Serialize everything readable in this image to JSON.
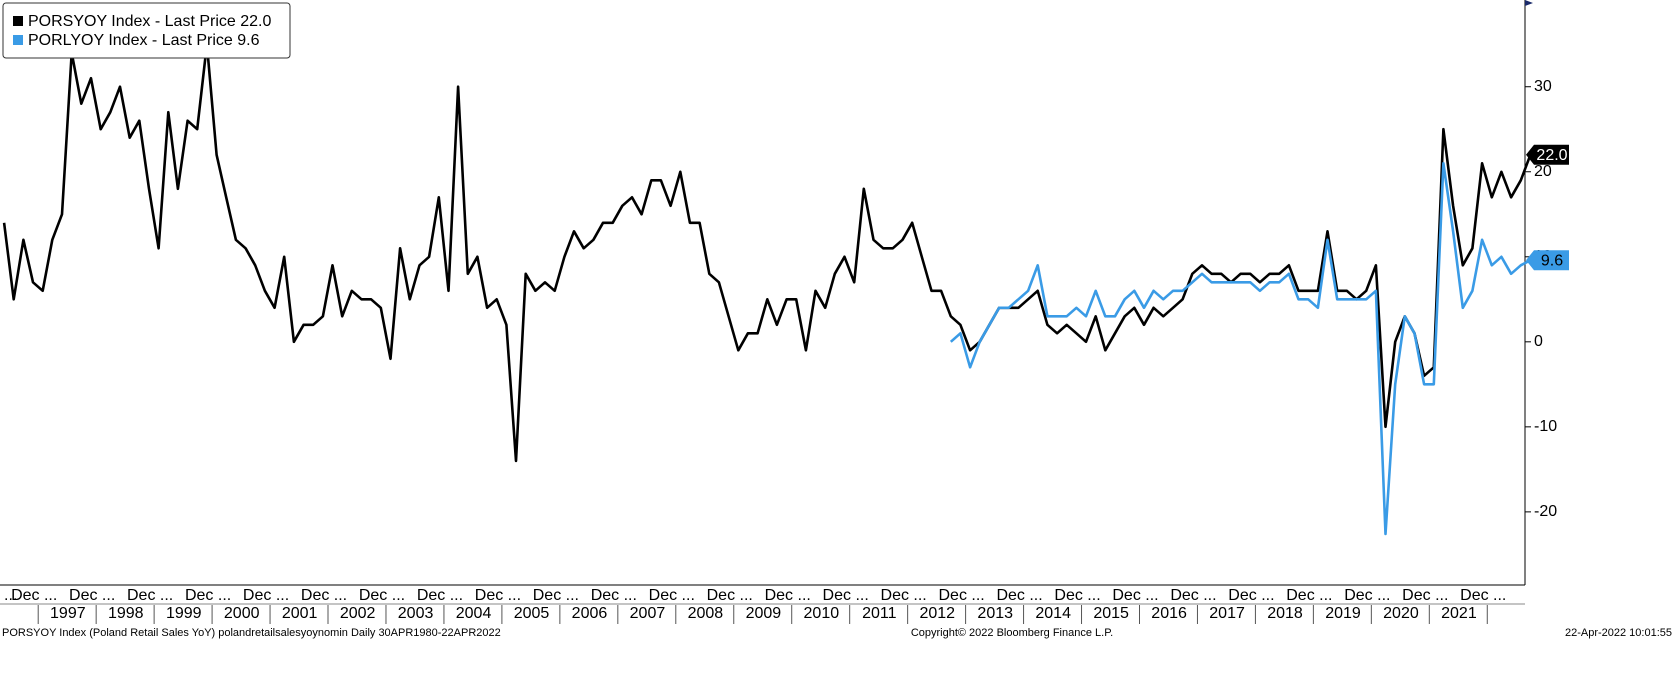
{
  "chart_data": {
    "type": "line",
    "x": [
      1996.4,
      1996.567,
      1996.733,
      1996.9,
      1997.067,
      1997.233,
      1997.4,
      1997.567,
      1997.733,
      1997.9,
      1998.067,
      1998.233,
      1998.4,
      1998.567,
      1998.733,
      1998.9,
      1999.067,
      1999.233,
      1999.4,
      1999.567,
      1999.733,
      1999.9,
      2000.067,
      2000.233,
      2000.4,
      2000.567,
      2000.733,
      2000.9,
      2001.067,
      2001.233,
      2001.4,
      2001.567,
      2001.733,
      2001.9,
      2002.067,
      2002.233,
      2002.4,
      2002.567,
      2002.733,
      2002.9,
      2003.067,
      2003.233,
      2003.4,
      2003.567,
      2003.733,
      2003.9,
      2004.067,
      2004.233,
      2004.4,
      2004.567,
      2004.733,
      2004.9,
      2005.067,
      2005.233,
      2005.4,
      2005.567,
      2005.733,
      2005.9,
      2006.067,
      2006.233,
      2006.4,
      2006.567,
      2006.733,
      2006.9,
      2007.067,
      2007.233,
      2007.4,
      2007.567,
      2007.733,
      2007.9,
      2008.067,
      2008.233,
      2008.4,
      2008.567,
      2008.733,
      2008.9,
      2009.067,
      2009.233,
      2009.4,
      2009.567,
      2009.733,
      2009.9,
      2010.067,
      2010.233,
      2010.4,
      2010.567,
      2010.733,
      2010.9,
      2011.067,
      2011.233,
      2011.4,
      2011.567,
      2011.733,
      2011.9,
      2012.067,
      2012.233,
      2012.4,
      2012.567,
      2012.733,
      2012.9,
      2013.067,
      2013.233,
      2013.4,
      2013.567,
      2013.733,
      2013.9,
      2014.067,
      2014.233,
      2014.4,
      2014.567,
      2014.733,
      2014.9,
      2015.067,
      2015.233,
      2015.4,
      2015.567,
      2015.733,
      2015.9,
      2016.067,
      2016.233,
      2016.4,
      2016.567,
      2016.733,
      2016.9,
      2017.067,
      2017.233,
      2017.4,
      2017.567,
      2017.733,
      2017.9,
      2018.067,
      2018.233,
      2018.4,
      2018.567,
      2018.733,
      2018.9,
      2019.067,
      2019.233,
      2019.4,
      2019.567,
      2019.733,
      2019.9,
      2020.067,
      2020.233,
      2020.4,
      2020.567,
      2020.733,
      2020.9,
      2021.067,
      2021.233,
      2021.4,
      2021.567,
      2021.733,
      2021.9,
      2022.067,
      2022.233,
      2022.4,
      2022.567,
      2022.733
    ],
    "series": [
      {
        "name": "PORSYOY Index - Last Price 22.0",
        "color": "#000000",
        "last_label": "22.0",
        "values": [
          14,
          5,
          12,
          7,
          6,
          12,
          15,
          34,
          28,
          31,
          25,
          27,
          30,
          24,
          26,
          18,
          11,
          27,
          18,
          26,
          25,
          35,
          22,
          17,
          12,
          11,
          9,
          6,
          4,
          10,
          0,
          2,
          2,
          3,
          9,
          3,
          6,
          5,
          5,
          4,
          -2,
          11,
          5,
          9,
          10,
          17,
          6,
          30,
          8,
          10,
          4,
          5,
          2,
          -14,
          8,
          6,
          7,
          6,
          10,
          13,
          11,
          12,
          14,
          14,
          16,
          17,
          15,
          19,
          19,
          16,
          20,
          14,
          14,
          8,
          7,
          3,
          -1,
          1,
          1,
          5,
          2,
          5,
          5,
          -1,
          6,
          4,
          8,
          10,
          7,
          18,
          12,
          11,
          11,
          12,
          14,
          10,
          6,
          6,
          3,
          2,
          -1,
          0,
          2,
          4,
          4,
          4,
          5,
          6,
          2,
          1,
          2,
          1,
          0,
          3,
          -1,
          1,
          3,
          4,
          2,
          4,
          3,
          4,
          5,
          8,
          9,
          8,
          8,
          7,
          8,
          8,
          7,
          8,
          8,
          9,
          6,
          6,
          6,
          13,
          6,
          6,
          5,
          6,
          9,
          -10,
          0,
          3,
          1,
          -4,
          -3,
          25,
          16,
          9,
          11,
          21,
          17,
          20,
          17,
          19,
          22
        ]
      },
      {
        "name": "PORLYOY Index - Last Price 9.6",
        "color": "#3a9be6",
        "last_label": "9.6",
        "values": [
          null,
          null,
          null,
          null,
          null,
          null,
          null,
          null,
          null,
          null,
          null,
          null,
          null,
          null,
          null,
          null,
          null,
          null,
          null,
          null,
          null,
          null,
          null,
          null,
          null,
          null,
          null,
          null,
          null,
          null,
          null,
          null,
          null,
          null,
          null,
          null,
          null,
          null,
          null,
          null,
          null,
          null,
          null,
          null,
          null,
          null,
          null,
          null,
          null,
          null,
          null,
          null,
          null,
          null,
          null,
          null,
          null,
          null,
          null,
          null,
          null,
          null,
          null,
          null,
          null,
          null,
          null,
          null,
          null,
          null,
          null,
          null,
          null,
          null,
          null,
          null,
          null,
          null,
          null,
          null,
          null,
          null,
          null,
          null,
          null,
          null,
          null,
          null,
          null,
          null,
          null,
          null,
          null,
          null,
          null,
          null,
          null,
          null,
          0,
          1,
          -3,
          0,
          2,
          4,
          4,
          5,
          6,
          9,
          3,
          3,
          3,
          4,
          3,
          6,
          3,
          3,
          5,
          6,
          4,
          6,
          5,
          6,
          6,
          7,
          8,
          7,
          7,
          7,
          7,
          7,
          6,
          7,
          7,
          8,
          5,
          5,
          4,
          12,
          5,
          5,
          5,
          5,
          6,
          -22.6,
          -5,
          3,
          1,
          -5,
          -5,
          21,
          13,
          4,
          6,
          12,
          9,
          10,
          8,
          9,
          9.6
        ]
      }
    ],
    "xlim": [
      1996.33,
      2022.64
    ],
    "ylim": [
      -28.6,
      40.2
    ],
    "yticks": [
      -20,
      -10,
      0,
      10,
      20,
      30
    ],
    "xticks": [
      {
        "value": 1996.4,
        "label": "..."
      },
      {
        "value": 1996.92,
        "label": "Dec ..."
      },
      {
        "value": 1997.92,
        "label": "Dec ..."
      },
      {
        "value": 1998.92,
        "label": "Dec ..."
      },
      {
        "value": 1999.92,
        "label": "Dec ..."
      },
      {
        "value": 2000.92,
        "label": "Dec ..."
      },
      {
        "value": 2001.92,
        "label": "Dec ..."
      },
      {
        "value": 2002.92,
        "label": "Dec ..."
      },
      {
        "value": 2003.92,
        "label": "Dec ..."
      },
      {
        "value": 2004.92,
        "label": "Dec ..."
      },
      {
        "value": 2005.92,
        "label": "Dec ..."
      },
      {
        "value": 2006.92,
        "label": "Dec ..."
      },
      {
        "value": 2007.92,
        "label": "Dec ..."
      },
      {
        "value": 2008.92,
        "label": "Dec ..."
      },
      {
        "value": 2009.92,
        "label": "Dec ..."
      },
      {
        "value": 2010.92,
        "label": "Dec ..."
      },
      {
        "value": 2011.92,
        "label": "Dec ..."
      },
      {
        "value": 2012.92,
        "label": "Dec ..."
      },
      {
        "value": 2013.92,
        "label": "Dec ..."
      },
      {
        "value": 2014.92,
        "label": "Dec ..."
      },
      {
        "value": 2015.92,
        "label": "Dec ..."
      },
      {
        "value": 2016.92,
        "label": "Dec ..."
      },
      {
        "value": 2017.92,
        "label": "Dec ..."
      },
      {
        "value": 2018.92,
        "label": "Dec ..."
      },
      {
        "value": 2019.92,
        "label": "Dec ..."
      },
      {
        "value": 2020.92,
        "label": "Dec ..."
      },
      {
        "value": 2021.92,
        "label": "Dec ..."
      }
    ],
    "year_labels": [
      {
        "value": 1997.5,
        "label": "1997"
      },
      {
        "value": 1998.5,
        "label": "1998"
      },
      {
        "value": 1999.5,
        "label": "1999"
      },
      {
        "value": 2000.5,
        "label": "2000"
      },
      {
        "value": 2001.5,
        "label": "2001"
      },
      {
        "value": 2002.5,
        "label": "2002"
      },
      {
        "value": 2003.5,
        "label": "2003"
      },
      {
        "value": 2004.5,
        "label": "2004"
      },
      {
        "value": 2005.5,
        "label": "2005"
      },
      {
        "value": 2006.5,
        "label": "2006"
      },
      {
        "value": 2007.5,
        "label": "2007"
      },
      {
        "value": 2008.5,
        "label": "2008"
      },
      {
        "value": 2009.5,
        "label": "2009"
      },
      {
        "value": 2010.5,
        "label": "2010"
      },
      {
        "value": 2011.5,
        "label": "2011"
      },
      {
        "value": 2012.5,
        "label": "2012"
      },
      {
        "value": 2013.5,
        "label": "2013"
      },
      {
        "value": 2014.5,
        "label": "2014"
      },
      {
        "value": 2015.5,
        "label": "2015"
      },
      {
        "value": 2016.5,
        "label": "2016"
      },
      {
        "value": 2017.5,
        "label": "2017"
      },
      {
        "value": 2018.5,
        "label": "2018"
      },
      {
        "value": 2019.5,
        "label": "2019"
      },
      {
        "value": 2020.5,
        "label": "2020"
      },
      {
        "value": 2021.5,
        "label": "2021"
      }
    ],
    "grid": false,
    "legend": "top-left",
    "footer_left": "PORSYOY Index (Poland Retail Sales YoY) polandretailsalesyoynomin  Daily 30APR1980-22APR2022",
    "footer_center": "Copyright© 2022 Bloomberg Finance L.P.",
    "footer_right": "22-Apr-2022 10:01:55"
  }
}
